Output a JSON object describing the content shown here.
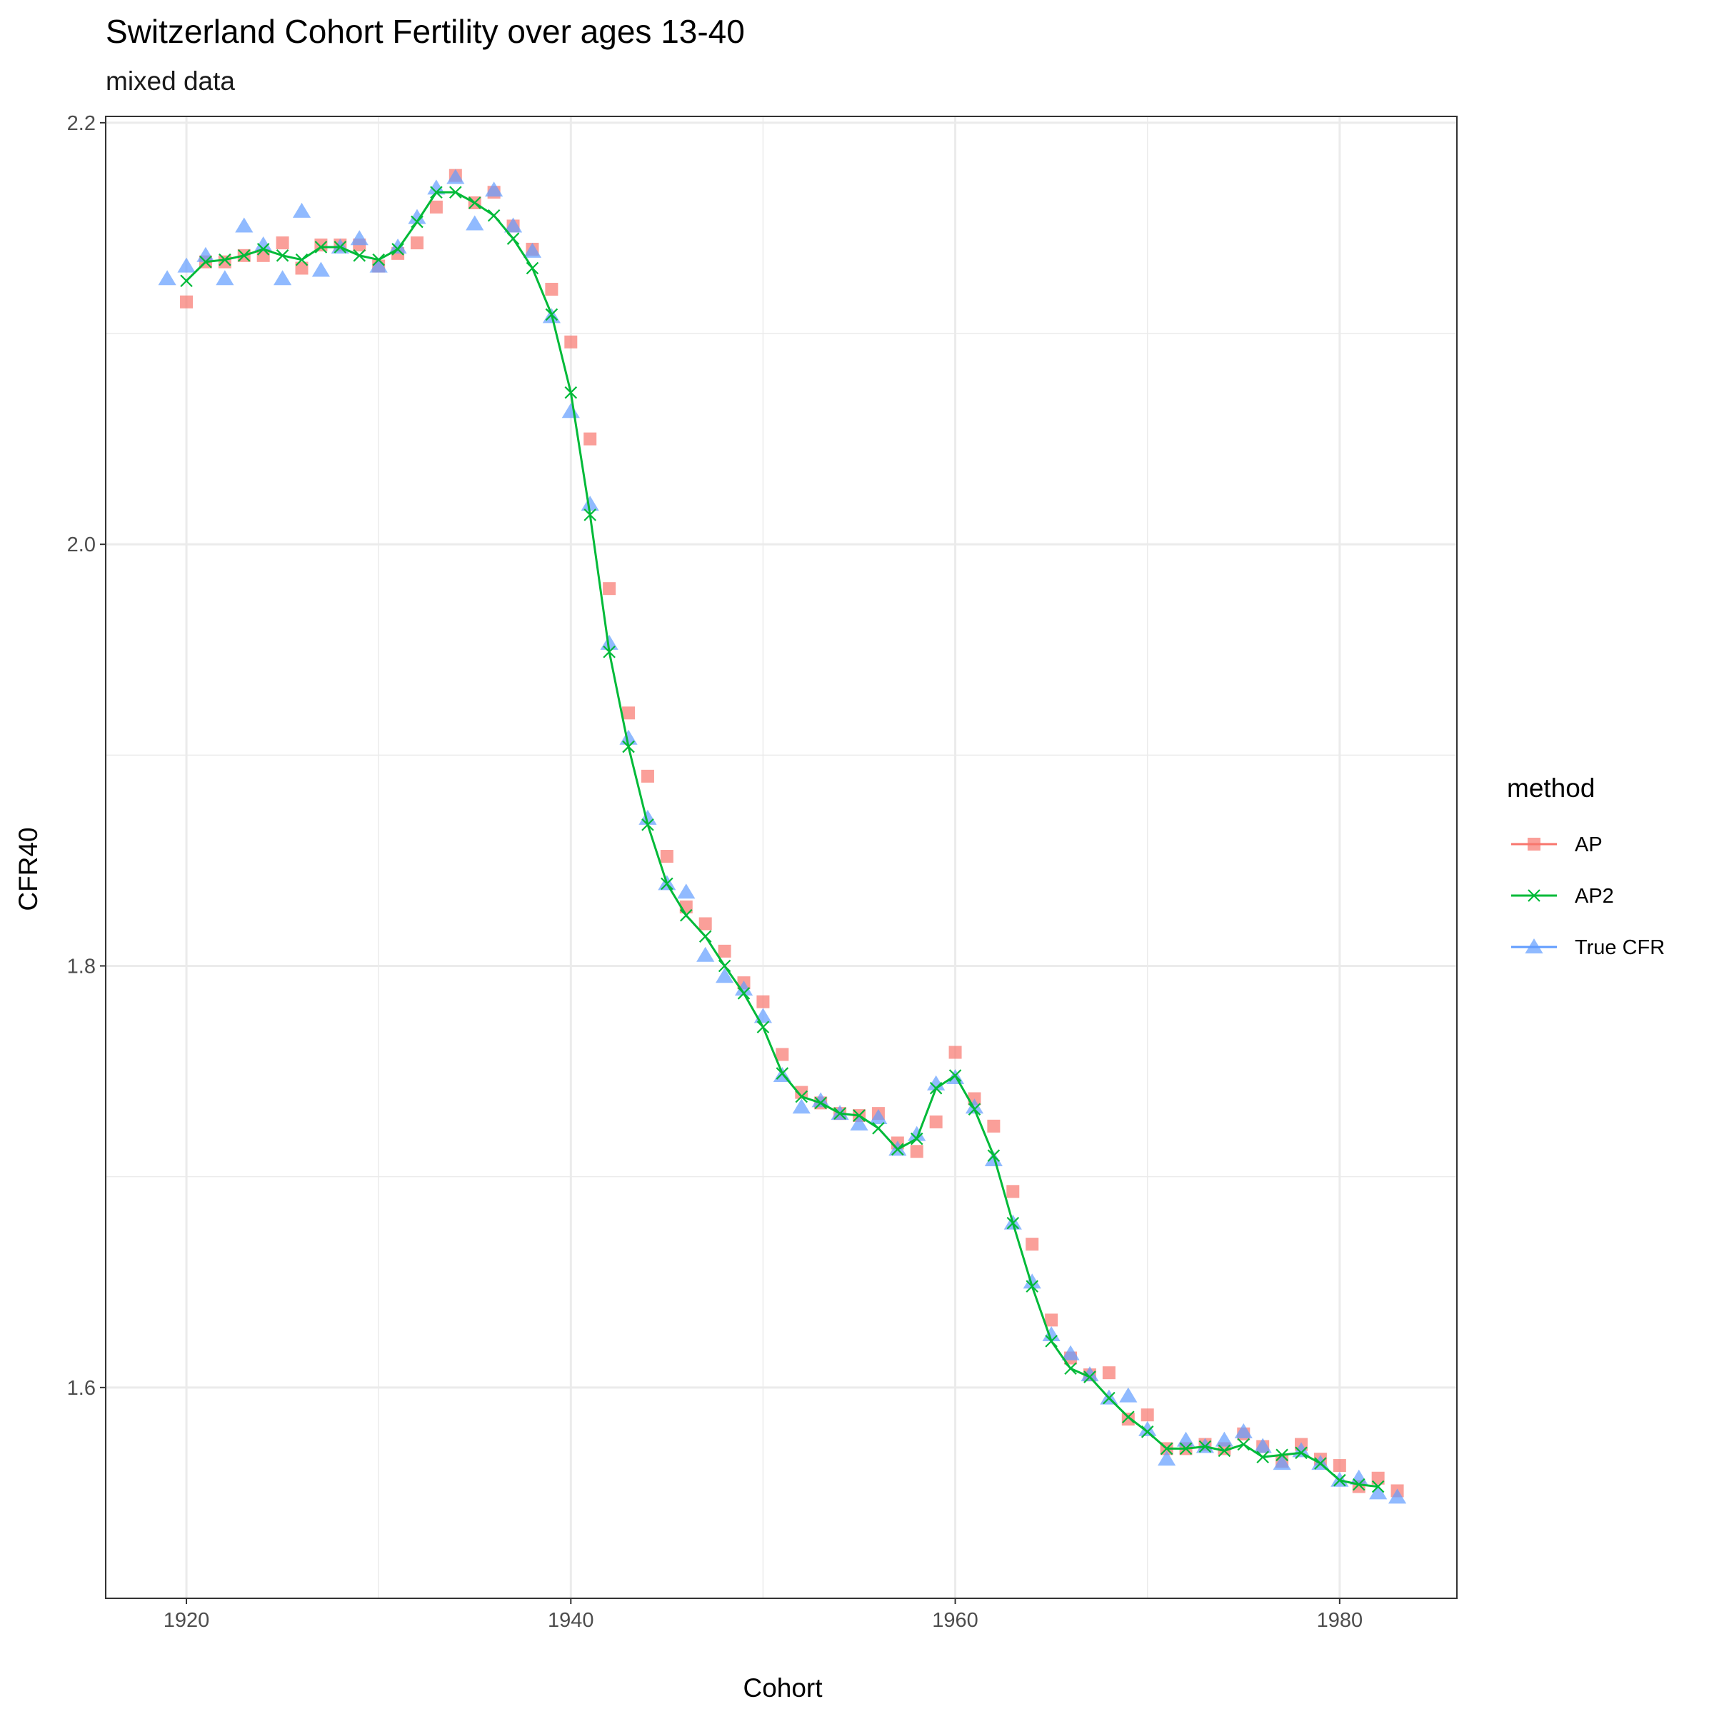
{
  "chart_data": {
    "type": "scatter",
    "title": "Switzerland Cohort Fertility over ages 13-40",
    "subtitle": "mixed data",
    "xlabel": "Cohort",
    "ylabel": "CFR40",
    "xlim": [
      1915.8,
      1986.1
    ],
    "ylim": [
      1.5,
      2.203
    ],
    "x_ticks": [
      1920,
      1940,
      1960,
      1980
    ],
    "y_ticks": [
      1.6,
      1.8,
      2.0,
      2.2
    ],
    "x_tick_labels": [
      "1920",
      "1940",
      "1960",
      "1980"
    ],
    "y_tick_labels": [
      "1.6",
      "1.8",
      "2.0",
      "2.2"
    ],
    "grid": true,
    "legend": {
      "title": "method",
      "position": "right",
      "entries": [
        "AP",
        "AP2",
        "True CFR"
      ]
    },
    "series": [
      {
        "name": "AP",
        "color": "#f8766d",
        "marker": "square",
        "line": false,
        "x": [
          1920,
          1921,
          1922,
          1923,
          1924,
          1925,
          1926,
          1927,
          1928,
          1929,
          1930,
          1931,
          1932,
          1933,
          1934,
          1935,
          1936,
          1937,
          1938,
          1939,
          1940,
          1941,
          1942,
          1943,
          1944,
          1945,
          1946,
          1947,
          1948,
          1949,
          1950,
          1951,
          1952,
          1953,
          1954,
          1955,
          1956,
          1957,
          1958,
          1959,
          1960,
          1961,
          1962,
          1963,
          1964,
          1965,
          1966,
          1967,
          1968,
          1969,
          1970,
          1971,
          1972,
          1973,
          1974,
          1975,
          1976,
          1977,
          1978,
          1979,
          1980,
          1981,
          1982,
          1983
        ],
        "values": [
          2.115,
          2.134,
          2.134,
          2.137,
          2.137,
          2.143,
          2.131,
          2.142,
          2.142,
          2.142,
          2.132,
          2.138,
          2.143,
          2.16,
          2.175,
          2.162,
          2.167,
          2.151,
          2.14,
          2.121,
          2.096,
          2.05,
          1.979,
          1.92,
          1.89,
          1.852,
          1.828,
          1.82,
          1.807,
          1.792,
          1.783,
          1.758,
          1.74,
          1.735,
          1.73,
          1.729,
          1.73,
          1.716,
          1.712,
          1.726,
          1.759,
          1.737,
          1.724,
          1.693,
          1.668,
          1.632,
          1.614,
          1.606,
          1.607,
          1.585,
          1.587,
          1.571,
          1.571,
          1.573,
          1.571,
          1.578,
          1.572,
          1.565,
          1.573,
          1.566,
          1.563,
          1.553,
          1.557,
          1.551
        ]
      },
      {
        "name": "AP2",
        "color": "#00ba38",
        "marker": "x",
        "line": true,
        "x": [
          1920,
          1921,
          1922,
          1923,
          1924,
          1925,
          1926,
          1927,
          1928,
          1929,
          1930,
          1931,
          1932,
          1933,
          1934,
          1935,
          1936,
          1937,
          1938,
          1939,
          1940,
          1941,
          1942,
          1943,
          1944,
          1945,
          1946,
          1947,
          1948,
          1949,
          1950,
          1951,
          1952,
          1953,
          1954,
          1955,
          1956,
          1957,
          1958,
          1959,
          1960,
          1961,
          1962,
          1963,
          1964,
          1965,
          1966,
          1967,
          1968,
          1969,
          1970,
          1971,
          1972,
          1973,
          1974,
          1975,
          1976,
          1977,
          1978,
          1979,
          1980,
          1981,
          1982
        ],
        "values": [
          2.125,
          2.134,
          2.135,
          2.137,
          2.14,
          2.137,
          2.135,
          2.141,
          2.141,
          2.137,
          2.135,
          2.14,
          2.153,
          2.167,
          2.167,
          2.162,
          2.156,
          2.145,
          2.131,
          2.109,
          2.072,
          2.014,
          1.949,
          1.904,
          1.867,
          1.839,
          1.824,
          1.814,
          1.8,
          1.787,
          1.771,
          1.749,
          1.738,
          1.735,
          1.73,
          1.729,
          1.723,
          1.713,
          1.718,
          1.742,
          1.748,
          1.732,
          1.71,
          1.678,
          1.648,
          1.622,
          1.609,
          1.605,
          1.595,
          1.586,
          1.579,
          1.571,
          1.571,
          1.572,
          1.57,
          1.573,
          1.567,
          1.568,
          1.569,
          1.564,
          1.556,
          1.554,
          1.553
        ]
      },
      {
        "name": "True CFR",
        "color": "#619cff",
        "marker": "triangle",
        "line": false,
        "x": [
          1919,
          1920,
          1921,
          1922,
          1923,
          1924,
          1925,
          1926,
          1927,
          1928,
          1929,
          1930,
          1931,
          1932,
          1933,
          1934,
          1935,
          1936,
          1937,
          1938,
          1939,
          1940,
          1941,
          1942,
          1943,
          1944,
          1945,
          1946,
          1947,
          1948,
          1949,
          1950,
          1951,
          1952,
          1953,
          1954,
          1955,
          1956,
          1957,
          1958,
          1959,
          1960,
          1961,
          1962,
          1963,
          1964,
          1965,
          1966,
          1967,
          1968,
          1969,
          1970,
          1971,
          1972,
          1973,
          1974,
          1975,
          1976,
          1977,
          1978,
          1979,
          1980,
          1981,
          1982,
          1983
        ],
        "values": [
          2.126,
          2.132,
          2.137,
          2.126,
          2.151,
          2.142,
          2.126,
          2.158,
          2.13,
          2.141,
          2.145,
          2.132,
          2.141,
          2.155,
          2.169,
          2.174,
          2.152,
          2.168,
          2.151,
          2.139,
          2.108,
          2.063,
          2.019,
          1.953,
          1.908,
          1.87,
          1.839,
          1.835,
          1.805,
          1.795,
          1.789,
          1.776,
          1.748,
          1.733,
          1.736,
          1.73,
          1.725,
          1.728,
          1.713,
          1.72,
          1.744,
          1.747,
          1.733,
          1.708,
          1.678,
          1.65,
          1.625,
          1.616,
          1.606,
          1.595,
          1.596,
          1.58,
          1.566,
          1.575,
          1.572,
          1.575,
          1.579,
          1.572,
          1.564,
          1.57,
          1.564,
          1.556,
          1.557,
          1.55,
          1.548
        ]
      }
    ]
  }
}
